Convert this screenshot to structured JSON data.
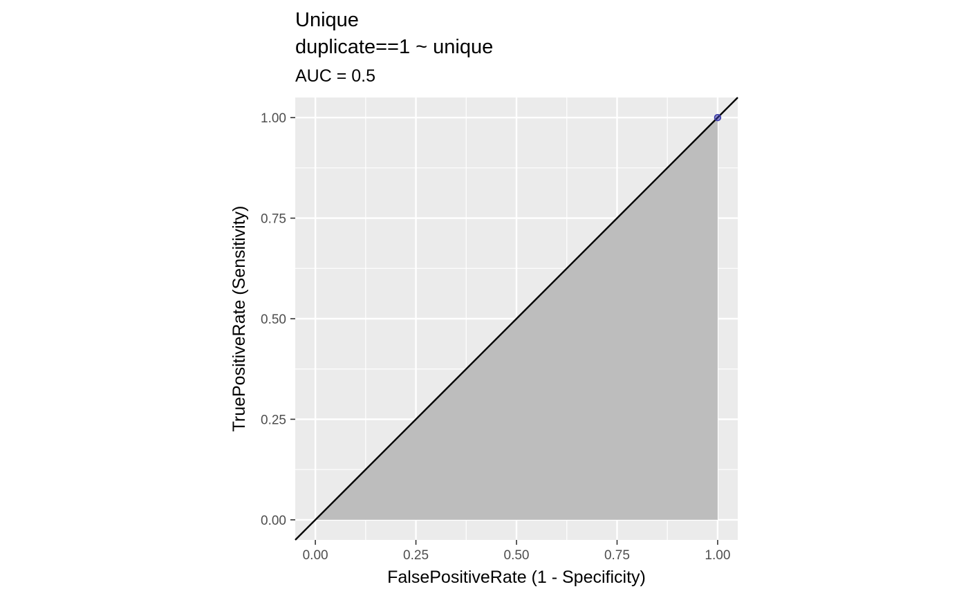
{
  "chart_data": {
    "type": "line",
    "title": [
      "Unique",
      "duplicate==1 ~ unique"
    ],
    "subtitle": "AUC = 0.5",
    "xlabel": "FalsePositiveRate (1 - Specificity)",
    "ylabel": "TruePositiveRate (Sensitivity)",
    "xlim": [
      -0.05,
      1.05
    ],
    "ylim": [
      -0.05,
      1.05
    ],
    "x_ticks": [
      0,
      0.25,
      0.5,
      0.75,
      1
    ],
    "x_tick_labels": [
      "0.00",
      "0.25",
      "0.50",
      "0.75",
      "1.00"
    ],
    "y_ticks": [
      0,
      0.25,
      0.5,
      0.75,
      1
    ],
    "y_tick_labels": [
      "0.00",
      "0.25",
      "0.50",
      "0.75",
      "1.00"
    ],
    "grid": true,
    "legend": "none",
    "panel_background": "#ebebeb",
    "series": [
      {
        "kind": "area",
        "x": [
          0,
          1,
          1
        ],
        "y": [
          0,
          0,
          1
        ],
        "color": "#bdbdbd"
      },
      {
        "kind": "line",
        "x": [
          -0.05,
          1.05
        ],
        "y": [
          -0.05,
          1.05
        ],
        "color": "#000000"
      },
      {
        "kind": "point",
        "x": [
          1
        ],
        "y": [
          1
        ],
        "color": "#3838a8"
      }
    ]
  }
}
